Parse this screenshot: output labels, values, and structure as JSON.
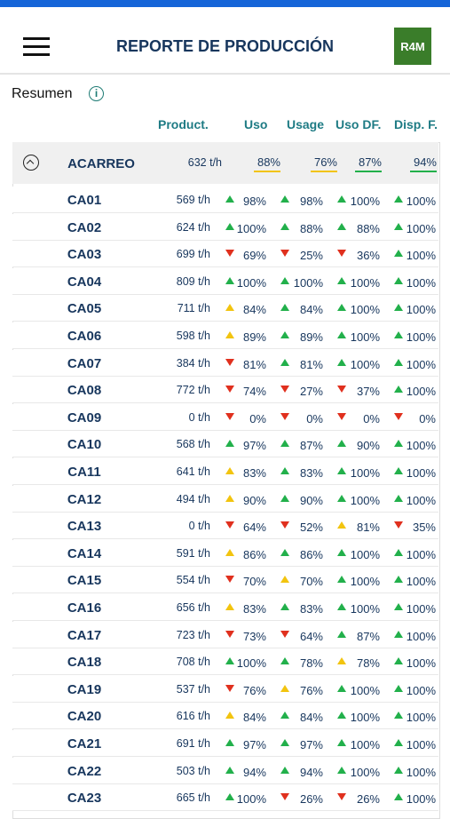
{
  "header": {
    "title": "REPORTE DE PRODUCCIÓN",
    "logo": "R4M"
  },
  "summary_label": "Resumen",
  "columns": [
    "Product.",
    "Uso",
    "Usage",
    "Uso DF.",
    "Disp. F."
  ],
  "group": {
    "name": "ACARREO",
    "product": "632 t/h",
    "cells": [
      [
        "88%",
        "#f2c40f"
      ],
      [
        "76%",
        "#f2c40f"
      ],
      [
        "87%",
        "#22b04b"
      ],
      [
        "94%",
        "#22b04b"
      ]
    ]
  },
  "rows": [
    {
      "unit": "CA01",
      "product": "569 t/h",
      "cells": [
        [
          "98%",
          "up",
          "#22b04b"
        ],
        [
          "98%",
          "up",
          "#22b04b"
        ],
        [
          "100%",
          "up",
          "#22b04b"
        ],
        [
          "100%",
          "up",
          "#22b04b"
        ]
      ]
    },
    {
      "unit": "CA02",
      "product": "624 t/h",
      "cells": [
        [
          "100%",
          "up",
          "#22b04b"
        ],
        [
          "88%",
          "up",
          "#22b04b"
        ],
        [
          "88%",
          "up",
          "#22b04b"
        ],
        [
          "100%",
          "up",
          "#22b04b"
        ]
      ]
    },
    {
      "unit": "CA03",
      "product": "699 t/h",
      "cells": [
        [
          "69%",
          "down",
          "#e0301e"
        ],
        [
          "25%",
          "down",
          "#e0301e"
        ],
        [
          "36%",
          "down",
          "#e0301e"
        ],
        [
          "100%",
          "up",
          "#22b04b"
        ]
      ]
    },
    {
      "unit": "CA04",
      "product": "809 t/h",
      "cells": [
        [
          "100%",
          "up",
          "#22b04b"
        ],
        [
          "100%",
          "up",
          "#22b04b"
        ],
        [
          "100%",
          "up",
          "#22b04b"
        ],
        [
          "100%",
          "up",
          "#22b04b"
        ]
      ]
    },
    {
      "unit": "CA05",
      "product": "711 t/h",
      "cells": [
        [
          "84%",
          "up",
          "#f2c40f"
        ],
        [
          "84%",
          "up",
          "#22b04b"
        ],
        [
          "100%",
          "up",
          "#22b04b"
        ],
        [
          "100%",
          "up",
          "#22b04b"
        ]
      ]
    },
    {
      "unit": "CA06",
      "product": "598 t/h",
      "cells": [
        [
          "89%",
          "up",
          "#f2c40f"
        ],
        [
          "89%",
          "up",
          "#22b04b"
        ],
        [
          "100%",
          "up",
          "#22b04b"
        ],
        [
          "100%",
          "up",
          "#22b04b"
        ]
      ]
    },
    {
      "unit": "CA07",
      "product": "384 t/h",
      "cells": [
        [
          "81%",
          "down",
          "#e0301e"
        ],
        [
          "81%",
          "up",
          "#22b04b"
        ],
        [
          "100%",
          "up",
          "#22b04b"
        ],
        [
          "100%",
          "up",
          "#22b04b"
        ]
      ]
    },
    {
      "unit": "CA08",
      "product": "772 t/h",
      "cells": [
        [
          "74%",
          "down",
          "#e0301e"
        ],
        [
          "27%",
          "down",
          "#e0301e"
        ],
        [
          "37%",
          "down",
          "#e0301e"
        ],
        [
          "100%",
          "up",
          "#22b04b"
        ]
      ]
    },
    {
      "unit": "CA09",
      "product": "0 t/h",
      "cells": [
        [
          "0%",
          "down",
          "#e0301e"
        ],
        [
          "0%",
          "down",
          "#e0301e"
        ],
        [
          "0%",
          "down",
          "#e0301e"
        ],
        [
          "0%",
          "down",
          "#e0301e"
        ]
      ]
    },
    {
      "unit": "CA10",
      "product": "568 t/h",
      "cells": [
        [
          "97%",
          "up",
          "#22b04b"
        ],
        [
          "87%",
          "up",
          "#22b04b"
        ],
        [
          "90%",
          "up",
          "#22b04b"
        ],
        [
          "100%",
          "up",
          "#22b04b"
        ]
      ]
    },
    {
      "unit": "CA11",
      "product": "641 t/h",
      "cells": [
        [
          "83%",
          "up",
          "#f2c40f"
        ],
        [
          "83%",
          "up",
          "#22b04b"
        ],
        [
          "100%",
          "up",
          "#22b04b"
        ],
        [
          "100%",
          "up",
          "#22b04b"
        ]
      ]
    },
    {
      "unit": "CA12",
      "product": "494 t/h",
      "cells": [
        [
          "90%",
          "up",
          "#f2c40f"
        ],
        [
          "90%",
          "up",
          "#22b04b"
        ],
        [
          "100%",
          "up",
          "#22b04b"
        ],
        [
          "100%",
          "up",
          "#22b04b"
        ]
      ]
    },
    {
      "unit": "CA13",
      "product": "0 t/h",
      "cells": [
        [
          "64%",
          "down",
          "#e0301e"
        ],
        [
          "52%",
          "down",
          "#e0301e"
        ],
        [
          "81%",
          "up",
          "#f2c40f"
        ],
        [
          "35%",
          "down",
          "#e0301e"
        ]
      ]
    },
    {
      "unit": "CA14",
      "product": "591 t/h",
      "cells": [
        [
          "86%",
          "up",
          "#f2c40f"
        ],
        [
          "86%",
          "up",
          "#22b04b"
        ],
        [
          "100%",
          "up",
          "#22b04b"
        ],
        [
          "100%",
          "up",
          "#22b04b"
        ]
      ]
    },
    {
      "unit": "CA15",
      "product": "554 t/h",
      "cells": [
        [
          "70%",
          "down",
          "#e0301e"
        ],
        [
          "70%",
          "up",
          "#f2c40f"
        ],
        [
          "100%",
          "up",
          "#22b04b"
        ],
        [
          "100%",
          "up",
          "#22b04b"
        ]
      ]
    },
    {
      "unit": "CA16",
      "product": "656 t/h",
      "cells": [
        [
          "83%",
          "up",
          "#f2c40f"
        ],
        [
          "83%",
          "up",
          "#22b04b"
        ],
        [
          "100%",
          "up",
          "#22b04b"
        ],
        [
          "100%",
          "up",
          "#22b04b"
        ]
      ]
    },
    {
      "unit": "CA17",
      "product": "723 t/h",
      "cells": [
        [
          "73%",
          "down",
          "#e0301e"
        ],
        [
          "64%",
          "down",
          "#e0301e"
        ],
        [
          "87%",
          "up",
          "#22b04b"
        ],
        [
          "100%",
          "up",
          "#22b04b"
        ]
      ]
    },
    {
      "unit": "CA18",
      "product": "708 t/h",
      "cells": [
        [
          "100%",
          "up",
          "#22b04b"
        ],
        [
          "78%",
          "up",
          "#22b04b"
        ],
        [
          "78%",
          "up",
          "#f2c40f"
        ],
        [
          "100%",
          "up",
          "#22b04b"
        ]
      ]
    },
    {
      "unit": "CA19",
      "product": "537 t/h",
      "cells": [
        [
          "76%",
          "down",
          "#e0301e"
        ],
        [
          "76%",
          "up",
          "#f2c40f"
        ],
        [
          "100%",
          "up",
          "#22b04b"
        ],
        [
          "100%",
          "up",
          "#22b04b"
        ]
      ]
    },
    {
      "unit": "CA20",
      "product": "616 t/h",
      "cells": [
        [
          "84%",
          "up",
          "#f2c40f"
        ],
        [
          "84%",
          "up",
          "#22b04b"
        ],
        [
          "100%",
          "up",
          "#22b04b"
        ],
        [
          "100%",
          "up",
          "#22b04b"
        ]
      ]
    },
    {
      "unit": "CA21",
      "product": "691 t/h",
      "cells": [
        [
          "97%",
          "up",
          "#22b04b"
        ],
        [
          "97%",
          "up",
          "#22b04b"
        ],
        [
          "100%",
          "up",
          "#22b04b"
        ],
        [
          "100%",
          "up",
          "#22b04b"
        ]
      ]
    },
    {
      "unit": "CA22",
      "product": "503 t/h",
      "cells": [
        [
          "94%",
          "up",
          "#22b04b"
        ],
        [
          "94%",
          "up",
          "#22b04b"
        ],
        [
          "100%",
          "up",
          "#22b04b"
        ],
        [
          "100%",
          "up",
          "#22b04b"
        ]
      ]
    },
    {
      "unit": "CA23",
      "product": "665 t/h",
      "cells": [
        [
          "100%",
          "up",
          "#22b04b"
        ],
        [
          "26%",
          "down",
          "#e0301e"
        ],
        [
          "26%",
          "down",
          "#e0301e"
        ],
        [
          "100%",
          "up",
          "#22b04b"
        ]
      ]
    }
  ]
}
